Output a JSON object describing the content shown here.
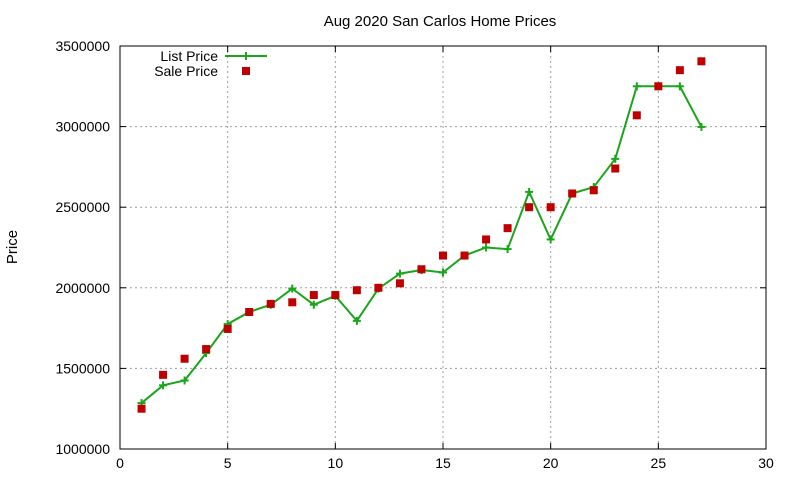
{
  "chart_data": {
    "type": "line",
    "title": "Aug 2020 San Carlos Home Prices",
    "xlabel": "",
    "ylabel": "Price",
    "xlim": [
      0,
      30
    ],
    "ylim": [
      1000000,
      3500000
    ],
    "x_ticks": [
      "0",
      "5",
      "10",
      "15",
      "20",
      "25",
      "30"
    ],
    "y_ticks": [
      "1000000",
      "1500000",
      "2000000",
      "2500000",
      "3000000",
      "3500000"
    ],
    "grid": true,
    "legend_position": "top-left",
    "x": [
      1,
      2,
      3,
      4,
      5,
      6,
      7,
      8,
      9,
      10,
      11,
      12,
      13,
      14,
      15,
      16,
      17,
      18,
      19,
      20,
      21,
      22,
      23,
      24,
      25,
      26,
      27
    ],
    "series": [
      {
        "name": "List Price",
        "style": "line-plus",
        "color": "#1aa51a",
        "values": [
          1285000,
          1395000,
          1425000,
          1595000,
          1775000,
          1850000,
          1895000,
          1995000,
          1895000,
          1950000,
          1795000,
          1995000,
          2088000,
          2110000,
          2095000,
          2200000,
          2250000,
          2240000,
          2595000,
          2300000,
          2585000,
          2625000,
          2800000,
          3250000,
          3250000,
          3250000,
          2998000
        ]
      },
      {
        "name": "Sale Price",
        "style": "square-points",
        "color": "#c00000",
        "values": [
          1250000,
          1460000,
          1560000,
          1620000,
          1745000,
          1850000,
          1900000,
          1910000,
          1955000,
          1955000,
          1985000,
          2000000,
          2028000,
          2115000,
          2200000,
          2200000,
          2300000,
          2370000,
          2500000,
          2500000,
          2585000,
          2605000,
          2740000,
          3070000,
          3250000,
          3350000,
          3405000
        ]
      }
    ]
  }
}
